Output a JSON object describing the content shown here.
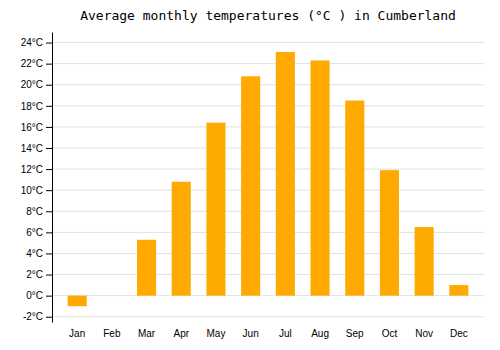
{
  "chart_data": {
    "type": "bar",
    "title": "Average monthly temperatures (°C ) in Cumberland",
    "categories": [
      "Jan",
      "Feb",
      "Mar",
      "Apr",
      "May",
      "Jun",
      "Jul",
      "Aug",
      "Sep",
      "Oct",
      "Nov",
      "Dec"
    ],
    "values": [
      -1.0,
      0.0,
      5.3,
      10.8,
      16.4,
      20.8,
      23.1,
      22.3,
      18.5,
      11.9,
      6.5,
      1.0
    ],
    "color": "#FFAA00",
    "ylim": [
      -2.5,
      25
    ],
    "yticks": [
      {
        "value": -2,
        "label": "-2°C"
      },
      {
        "value": 0,
        "label": "0°C"
      },
      {
        "value": 2,
        "label": "2°C"
      },
      {
        "value": 4,
        "label": "4°C"
      },
      {
        "value": 6,
        "label": "6°C"
      },
      {
        "value": 8,
        "label": "8°C"
      },
      {
        "value": 10,
        "label": "10°C"
      },
      {
        "value": 12,
        "label": "12°C"
      },
      {
        "value": 14,
        "label": "14°C"
      },
      {
        "value": 16,
        "label": "16°C"
      },
      {
        "value": 18,
        "label": "18°C"
      },
      {
        "value": 20,
        "label": "20°C"
      },
      {
        "value": 22,
        "label": "22°C"
      },
      {
        "value": 24,
        "label": "24°C"
      }
    ],
    "grid": true
  }
}
